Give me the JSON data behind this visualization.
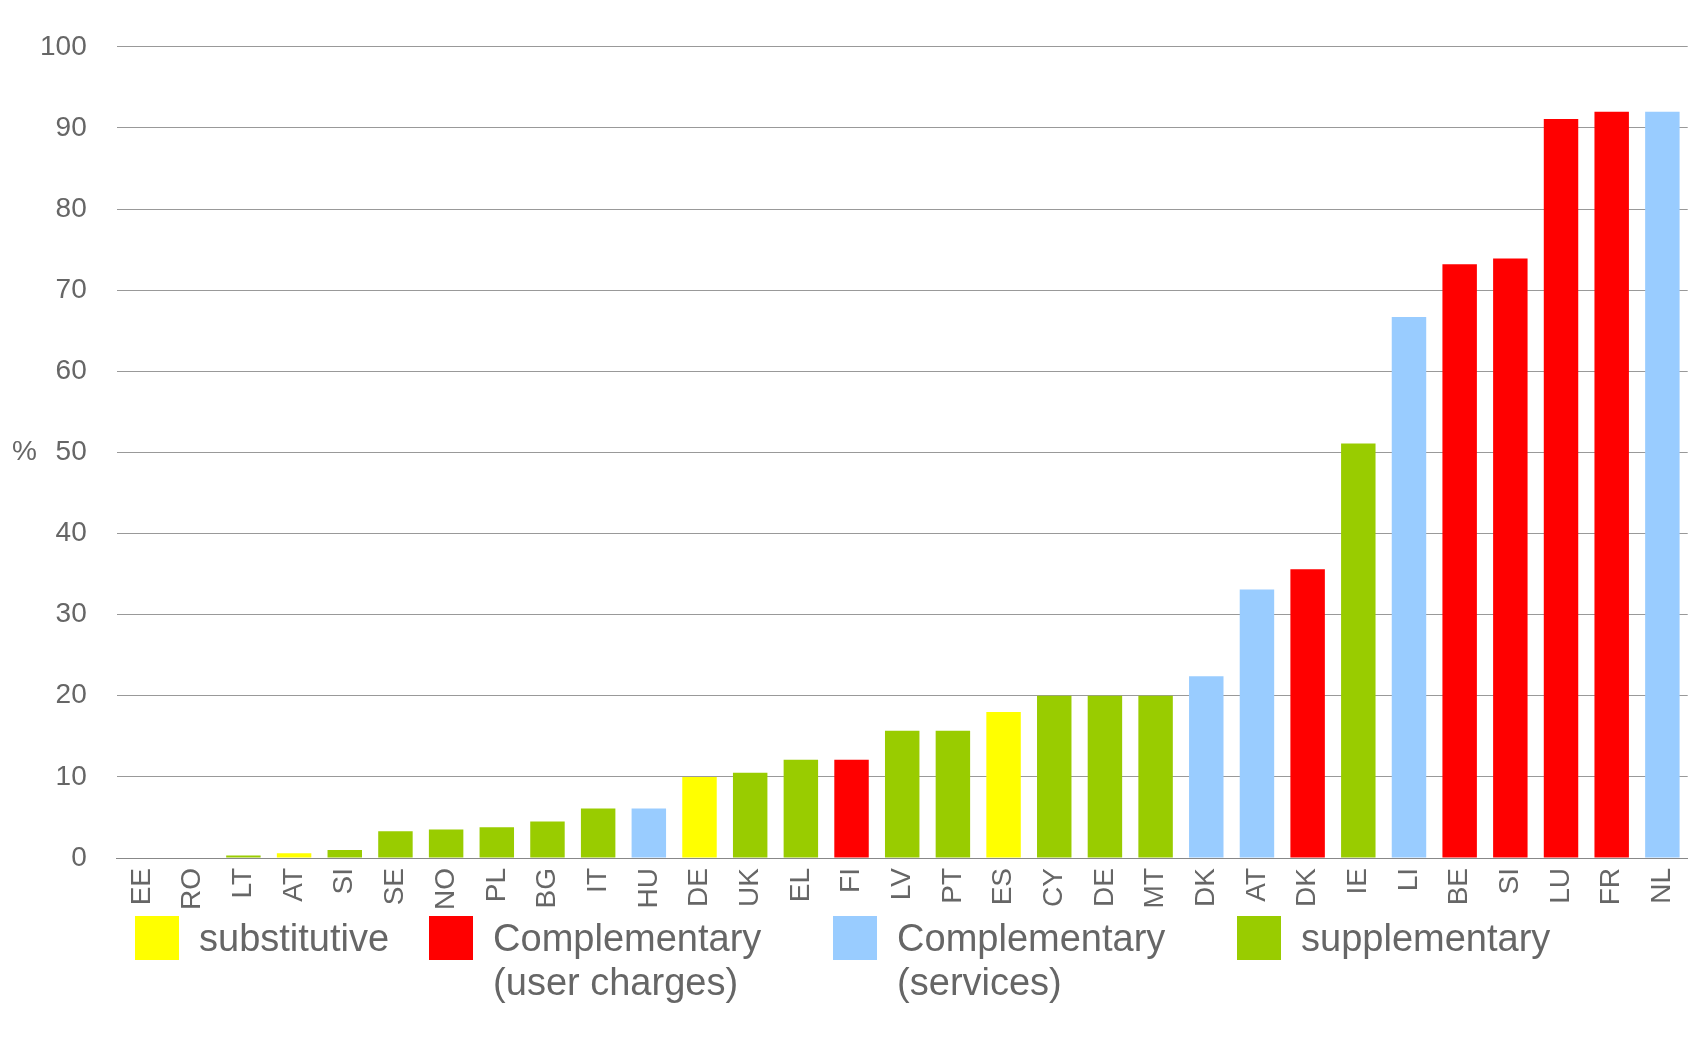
{
  "chart_data": {
    "type": "bar",
    "ylabel": "%",
    "categories": [
      "EE",
      "RO",
      "LT",
      "AT",
      "SI",
      "SE",
      "NO",
      "PL",
      "BG",
      "IT",
      "HU",
      "DE",
      "UK",
      "EL",
      "FI",
      "LV",
      "PT",
      "ES",
      "CY",
      "DE",
      "MT",
      "DK",
      "AT",
      "DK",
      "IE",
      "LI",
      "BE",
      "SI",
      "LU",
      "FR",
      "NL"
    ],
    "series": [
      {
        "name": "substitutive",
        "color": "#ffff00",
        "values": [
          null,
          null,
          null,
          0.6,
          null,
          null,
          null,
          null,
          null,
          null,
          null,
          10,
          null,
          null,
          null,
          null,
          null,
          18,
          null,
          null,
          null,
          null,
          null,
          null,
          null,
          null,
          null,
          null,
          null,
          null,
          null
        ]
      },
      {
        "name": "Complementary (user charges)",
        "color": "#ff0000",
        "values": [
          null,
          null,
          null,
          null,
          null,
          null,
          null,
          null,
          null,
          null,
          null,
          null,
          null,
          null,
          12.1,
          null,
          null,
          null,
          null,
          null,
          null,
          null,
          null,
          35.6,
          null,
          null,
          73.2,
          73.9,
          91.1,
          92,
          null
        ]
      },
      {
        "name": "Complementary (services)",
        "color": "#99ccff",
        "values": [
          null,
          null,
          null,
          null,
          null,
          null,
          null,
          null,
          null,
          null,
          6.1,
          null,
          null,
          null,
          null,
          null,
          null,
          null,
          null,
          null,
          null,
          22.4,
          33.1,
          null,
          null,
          66.7,
          null,
          null,
          null,
          null,
          92
        ]
      },
      {
        "name": "supplementary",
        "color": "#99cc00",
        "values": [
          null,
          null,
          0.3,
          null,
          1,
          3.3,
          3.5,
          3.8,
          4.5,
          6.1,
          null,
          null,
          10.5,
          12.1,
          null,
          15.7,
          15.7,
          null,
          20,
          20,
          20,
          null,
          null,
          null,
          51.1,
          null,
          null,
          null,
          null,
          null,
          null
        ]
      }
    ],
    "stacked": true,
    "ylim": [
      0,
      100
    ],
    "yticks": [
      0,
      10,
      20,
      30,
      40,
      50,
      60,
      70,
      80,
      90,
      100
    ],
    "grid": "y",
    "legend": "bottom"
  }
}
